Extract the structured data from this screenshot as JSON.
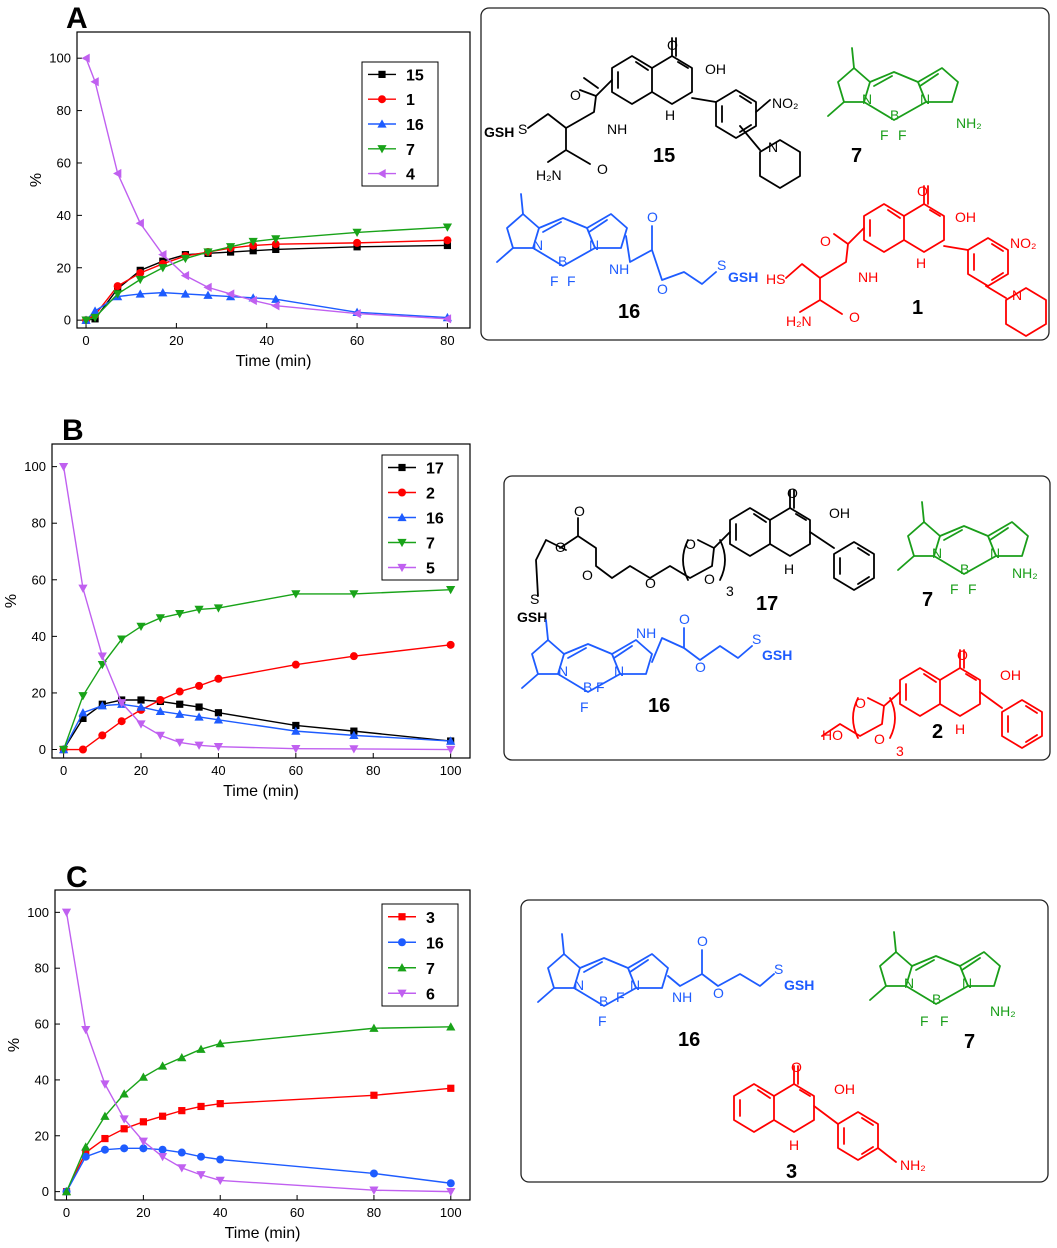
{
  "panels": [
    {
      "letter": "A",
      "chart_data": {
        "type": "line",
        "xlabel": "Time (min)",
        "ylabel": "%",
        "xlim": [
          -2,
          85
        ],
        "ylim": [
          -3,
          110
        ],
        "xticks": [
          0,
          20,
          40,
          60,
          80
        ],
        "yticks": [
          0,
          20,
          40,
          60,
          80,
          100
        ],
        "legend_position": "top-right",
        "series": [
          {
            "name": "15",
            "color": "#000000",
            "marker": "square",
            "x": [
              0,
              2,
              7,
              12,
              17,
              22,
              27,
              32,
              37,
              42,
              60,
              80
            ],
            "y": [
              0,
              0.5,
              12,
              19,
              22.5,
              25,
              25.5,
              26,
              26.5,
              27,
              28,
              28.5
            ]
          },
          {
            "name": "1",
            "color": "#ff0000",
            "marker": "circle",
            "x": [
              0,
              2,
              7,
              12,
              17,
              22,
              27,
              32,
              37,
              42,
              60,
              80
            ],
            "y": [
              0,
              2,
              13,
              18,
              21.5,
              24.5,
              26,
              27.5,
              28.5,
              29,
              29.5,
              30.5
            ]
          },
          {
            "name": "16",
            "color": "#1e5cff",
            "marker": "triangle-up",
            "x": [
              0,
              2,
              7,
              12,
              17,
              22,
              27,
              32,
              37,
              42,
              60,
              80
            ],
            "y": [
              0,
              3.5,
              9,
              10,
              10.5,
              10,
              9.5,
              9,
              8.5,
              8,
              3,
              1
            ]
          },
          {
            "name": "7",
            "color": "#19a319",
            "marker": "triangle-down",
            "x": [
              0,
              2,
              7,
              12,
              17,
              22,
              27,
              32,
              37,
              42,
              60,
              80
            ],
            "y": [
              0,
              1,
              10,
              15.5,
              20,
              23.5,
              26,
              28,
              30,
              31,
              33.5,
              35.5
            ]
          },
          {
            "name": "4",
            "color": "#c060f0",
            "marker": "triangle-left",
            "x": [
              0,
              2,
              7,
              12,
              17,
              22,
              27,
              32,
              37,
              42,
              60,
              80
            ],
            "y": [
              100,
              91,
              56,
              37,
              25,
              17,
              12.5,
              10,
              7.5,
              5.5,
              2.5,
              0.5
            ]
          }
        ]
      },
      "scheme": {
        "label_15": "15",
        "label_7": "7",
        "label_16": "16",
        "label_1": "1",
        "gsh": "GSH",
        "s": "S",
        "nh": "NH",
        "h": "H",
        "h2n": "H₂N",
        "o": "O",
        "oh": "OH",
        "no2": "NO₂",
        "n": "N",
        "b": "B",
        "f": "F",
        "nh2": "NH₂",
        "hs": "HS"
      }
    },
    {
      "letter": "B",
      "chart_data": {
        "type": "line",
        "xlabel": "Time (min)",
        "ylabel": "%",
        "xlim": [
          -3,
          105
        ],
        "ylim": [
          -3,
          108
        ],
        "xticks": [
          0,
          20,
          40,
          60,
          80,
          100
        ],
        "yticks": [
          0,
          20,
          40,
          60,
          80,
          100
        ],
        "legend_position": "top-right",
        "series": [
          {
            "name": "17",
            "color": "#000000",
            "marker": "square",
            "x": [
              0,
              5,
              10,
              15,
              20,
              25,
              30,
              35,
              40,
              60,
              75,
              100
            ],
            "y": [
              0,
              11,
              16,
              17.5,
              17.5,
              17,
              16,
              15,
              13,
              8.5,
              6.5,
              3
            ]
          },
          {
            "name": "2",
            "color": "#ff0000",
            "marker": "circle",
            "x": [
              0,
              5,
              10,
              15,
              20,
              25,
              30,
              35,
              40,
              60,
              75,
              100
            ],
            "y": [
              0,
              0,
              5,
              10,
              14,
              17.5,
              20.5,
              22.5,
              25,
              30,
              33,
              37
            ]
          },
          {
            "name": "16",
            "color": "#1e5cff",
            "marker": "triangle-up",
            "x": [
              0,
              5,
              10,
              15,
              20,
              25,
              30,
              35,
              40,
              60,
              75,
              100
            ],
            "y": [
              0,
              13,
              15.5,
              16,
              15,
              13.5,
              12.5,
              11.5,
              10.5,
              6.5,
              5,
              3
            ]
          },
          {
            "name": "7",
            "color": "#19a319",
            "marker": "triangle-down",
            "x": [
              0,
              5,
              10,
              15,
              20,
              25,
              30,
              35,
              40,
              60,
              75,
              100
            ],
            "y": [
              0,
              19,
              30,
              39,
              43.5,
              46.5,
              48,
              49.5,
              50,
              55,
              55,
              56.5
            ]
          },
          {
            "name": "5",
            "color": "#c060f0",
            "marker": "triangle-down",
            "x": [
              0,
              5,
              10,
              15,
              20,
              25,
              30,
              35,
              40,
              60,
              75,
              100
            ],
            "y": [
              100,
              57,
              33,
              16.5,
              9,
              5,
              2.5,
              1.5,
              1,
              0.3,
              0.2,
              0
            ]
          }
        ]
      },
      "scheme": {
        "label_17": "17",
        "label_7": "7",
        "label_16": "16",
        "label_2": "2",
        "gsh": "GSH",
        "s": "S",
        "h": "H",
        "o": "O",
        "oh": "OH",
        "ho": "HO",
        "sub3": "3",
        "n": "N",
        "b": "B",
        "f": "F",
        "nh": "NH",
        "nh2": "NH₂"
      }
    },
    {
      "letter": "C",
      "chart_data": {
        "type": "line",
        "xlabel": "Time (min)",
        "ylabel": "%",
        "xlim": [
          -3,
          105
        ],
        "ylim": [
          -3,
          108
        ],
        "xticks": [
          0,
          20,
          40,
          60,
          80,
          100
        ],
        "yticks": [
          0,
          20,
          40,
          60,
          80,
          100
        ],
        "legend_position": "top-right",
        "series": [
          {
            "name": "3",
            "color": "#ff0000",
            "marker": "square",
            "x": [
              0,
              5,
              10,
              15,
              20,
              25,
              30,
              35,
              40,
              80,
              100
            ],
            "y": [
              0,
              14,
              19,
              22.5,
              25,
              27,
              29,
              30.5,
              31.5,
              34.5,
              37
            ]
          },
          {
            "name": "16",
            "color": "#1e5cff",
            "marker": "circle",
            "x": [
              0,
              5,
              10,
              15,
              20,
              25,
              30,
              35,
              40,
              80,
              100
            ],
            "y": [
              0,
              12.5,
              15,
              15.5,
              15.5,
              15,
              14,
              12.5,
              11.5,
              6.5,
              3
            ]
          },
          {
            "name": "7",
            "color": "#19a319",
            "marker": "triangle-up",
            "x": [
              0,
              5,
              10,
              15,
              20,
              25,
              30,
              35,
              40,
              80,
              100
            ],
            "y": [
              0,
              16,
              27,
              35,
              41,
              45,
              48,
              51,
              53,
              58.5,
              59
            ]
          },
          {
            "name": "6",
            "color": "#c060f0",
            "marker": "triangle-down",
            "x": [
              0,
              5,
              10,
              15,
              20,
              25,
              30,
              35,
              40,
              80,
              100
            ],
            "y": [
              100,
              58,
              38.5,
              26,
              18,
              12.5,
              8.5,
              6,
              4,
              0.5,
              0
            ]
          }
        ]
      },
      "scheme": {
        "label_16": "16",
        "label_7": "7",
        "label_3": "3",
        "gsh": "GSH",
        "s": "S",
        "h": "H",
        "o": "O",
        "oh": "OH",
        "n": "N",
        "b": "B",
        "f": "F",
        "nh": "NH",
        "nh2": "NH₂"
      }
    }
  ]
}
